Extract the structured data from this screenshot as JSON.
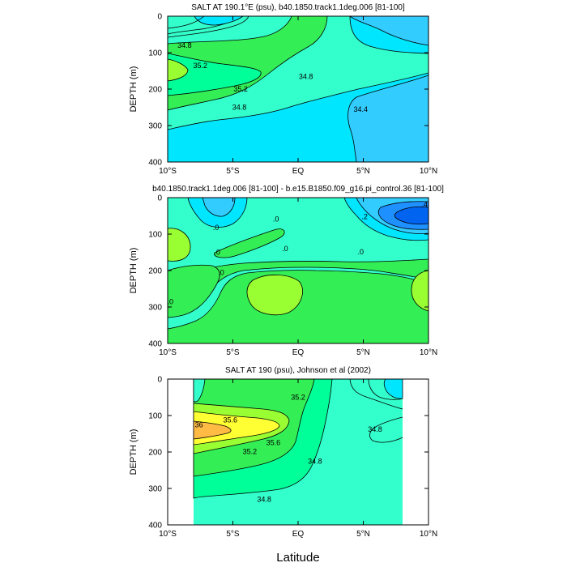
{
  "figure": {
    "xlabel": "Latitude"
  },
  "colors": {
    "cyan_light": "#6ee8ff",
    "cyan": "#00e6ff",
    "blue_light": "#33ccff",
    "blue": "#1e90ff",
    "blue_dark": "#0064f0",
    "aqua": "#33ffcc",
    "mint": "#00ff99",
    "green": "#33ee55",
    "lime": "#99ff33",
    "yellow": "#ffff33",
    "orange": "#ffbb44",
    "line": "#000000"
  },
  "chart_data": [
    {
      "type": "contour",
      "title": "SALT AT 190.1°E (psu), b40.1850.track1.1deg.006 [81-100]",
      "xlabel": "",
      "ylabel": "DEPTH (m)",
      "xlim": [
        -10,
        10
      ],
      "ylim": [
        400,
        0
      ],
      "xticks": [
        -10,
        -5,
        0,
        5,
        10
      ],
      "xticklabels": [
        "10°S",
        "5°S",
        "EQ",
        "5°N",
        "10°N"
      ],
      "yticks": [
        0,
        100,
        200,
        300,
        400
      ],
      "yticklabels": [
        "0",
        "100",
        "200",
        "300",
        "400"
      ],
      "contour_labels": [
        {
          "text": "34.8",
          "lat": -8.7,
          "depth": 80
        },
        {
          "text": "35.2",
          "lat": -7.5,
          "depth": 135
        },
        {
          "text": "35.2",
          "lat": -4.4,
          "depth": 200
        },
        {
          "text": "34.8",
          "lat": -4.5,
          "depth": 250
        },
        {
          "text": "34.8",
          "lat": 0.6,
          "depth": 165
        },
        {
          "text": "34.4",
          "lat": 4.8,
          "depth": 255
        }
      ]
    },
    {
      "type": "contour",
      "title": "b40.1850.track1.1deg.006 [81-100] - b.e15.B1850.f09_g16.pi_control.36 [81-100]",
      "xlabel": "",
      "ylabel": "DEPTH (m)",
      "xlim": [
        -10,
        10
      ],
      "ylim": [
        400,
        0
      ],
      "xticks": [
        -10,
        -5,
        0,
        5,
        10
      ],
      "xticklabels": [
        "10°S",
        "5°S",
        "EQ",
        "5°N",
        "10°N"
      ],
      "yticks": [
        0,
        100,
        200,
        300,
        400
      ],
      "yticklabels": [
        "0",
        "100",
        "200",
        "300",
        "400"
      ],
      "contour_labels": [
        {
          "text": ".0",
          "lat": -6.3,
          "depth": 82
        },
        {
          "text": ".0",
          "lat": -1.7,
          "depth": 58
        },
        {
          "text": ".0",
          "lat": -6.2,
          "depth": 150
        },
        {
          "text": ".0",
          "lat": -5.9,
          "depth": 205
        },
        {
          "text": ".0",
          "lat": -1.0,
          "depth": 140
        },
        {
          "text": ".0",
          "lat": 4.8,
          "depth": 148
        },
        {
          "text": ".0",
          "lat": -9.8,
          "depth": 285
        },
        {
          "text": ".2",
          "lat": 5.1,
          "depth": 52
        },
        {
          "text": ".4",
          "lat": 9.7,
          "depth": 18
        }
      ]
    },
    {
      "type": "contour",
      "title": "SALT AT 190 (psu), Johnson et al (2002)",
      "xlabel": "",
      "ylabel": "DEPTH (m)",
      "xlim": [
        -10,
        10
      ],
      "ylim": [
        400,
        0
      ],
      "xticks": [
        -10,
        -5,
        0,
        5,
        10
      ],
      "xticklabels": [
        "10°S",
        "5°S",
        "EQ",
        "5°N",
        "10°N"
      ],
      "yticks": [
        0,
        100,
        200,
        300,
        400
      ],
      "yticklabels": [
        "0",
        "100",
        "200",
        "300",
        "400"
      ],
      "data_extent_lat": [
        -8,
        8
      ],
      "contour_labels": [
        {
          "text": "35.2",
          "lat": 0.0,
          "depth": 50
        },
        {
          "text": "35.6",
          "lat": -5.2,
          "depth": 112
        },
        {
          "text": "36",
          "lat": -7.6,
          "depth": 125
        },
        {
          "text": "35.6",
          "lat": -1.9,
          "depth": 174
        },
        {
          "text": "35.2",
          "lat": -3.7,
          "depth": 198
        },
        {
          "text": "34.8",
          "lat": -2.6,
          "depth": 330
        },
        {
          "text": "34.8",
          "lat": 1.3,
          "depth": 225
        },
        {
          "text": "34.8",
          "lat": 5.9,
          "depth": 137
        }
      ]
    }
  ]
}
